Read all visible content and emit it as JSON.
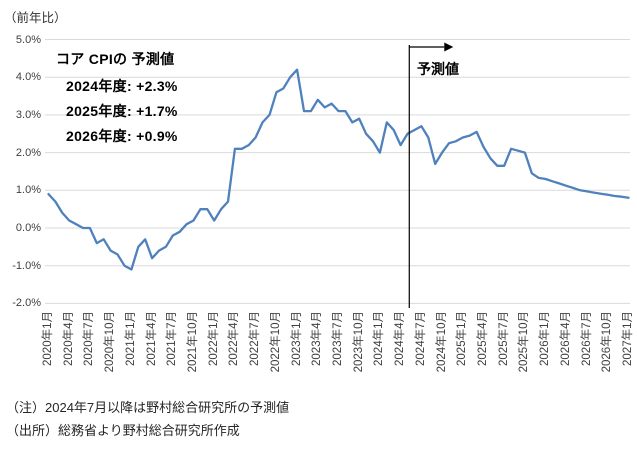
{
  "figure": {
    "y_axis_title": "（前年比）"
  },
  "annotation": {
    "title": "コア CPIの 予測値",
    "lines": [
      "2024年度: +2.3%",
      "2025年度: +1.7%",
      "2026年度: +0.9%"
    ]
  },
  "forecast": {
    "label": "予測値",
    "starts": "2024年7月"
  },
  "notes": {
    "note": "（注）2024年7月以降は野村総合研究所の予測値",
    "source": "（出所）総務省より野村総合研究所作成"
  },
  "chart_data": {
    "type": "line",
    "title": "",
    "ylabel": "（前年比）",
    "series_name": "コアCPI",
    "ylim": [
      -2.0,
      5.0
    ],
    "grid": true,
    "legend": false,
    "y_tick_labels": [
      "5.0%",
      "4.0%",
      "3.0%",
      "2.0%",
      "1.0%",
      "0.0%",
      "-1.0%",
      "-2.0%"
    ],
    "y_tick_values": [
      5,
      4,
      3,
      2,
      1,
      0,
      -1,
      -2
    ],
    "x_tick_interval_months": 3,
    "x_tick_labels": [
      "2020年1月",
      "2020年4月",
      "2020年7月",
      "2020年10月",
      "2021年1月",
      "2021年4月",
      "2021年7月",
      "2021年10月",
      "2022年1月",
      "2022年4月",
      "2022年7月",
      "2022年10月",
      "2023年1月",
      "2023年4月",
      "2023年7月",
      "2023年10月",
      "2024年1月",
      "2024年4月",
      "2024年7月",
      "2024年10月",
      "2025年1月",
      "2025年4月",
      "2025年7月",
      "2025年10月",
      "2026年1月",
      "2026年4月",
      "2026年7月",
      "2026年10月",
      "2027年1月"
    ],
    "x_start": "2020年1月",
    "x_end": "2027年1月",
    "forecast_from": "2024年7月",
    "monthly_values": [
      0.9,
      0.7,
      0.4,
      0.2,
      0.1,
      0.0,
      0.0,
      -0.4,
      -0.3,
      -0.6,
      -0.7,
      -1.0,
      -1.1,
      -0.5,
      -0.3,
      -0.8,
      -0.6,
      -0.5,
      -0.2,
      -0.1,
      0.1,
      0.2,
      0.5,
      0.5,
      0.2,
      0.5,
      0.7,
      2.1,
      2.1,
      2.2,
      2.4,
      2.8,
      3.0,
      3.6,
      3.7,
      4.0,
      4.2,
      3.1,
      3.1,
      3.4,
      3.2,
      3.3,
      3.1,
      3.1,
      2.8,
      2.9,
      2.5,
      2.3,
      2.0,
      2.8,
      2.6,
      2.2,
      2.5,
      2.6,
      2.7,
      2.4,
      1.7,
      2.0,
      2.25,
      2.3,
      2.4,
      2.45,
      2.55,
      2.15,
      1.85,
      1.65,
      1.65,
      2.1,
      2.05,
      2.0,
      1.45,
      1.33,
      1.3,
      1.24,
      1.18,
      1.12,
      1.06,
      1.0,
      0.97,
      0.94,
      0.91,
      0.88,
      0.85,
      0.83,
      0.8
    ],
    "colors": {
      "line": "#4f81bd",
      "grid": "#d9d9d9",
      "divider": "#000000",
      "axis_text": "#404040"
    }
  }
}
